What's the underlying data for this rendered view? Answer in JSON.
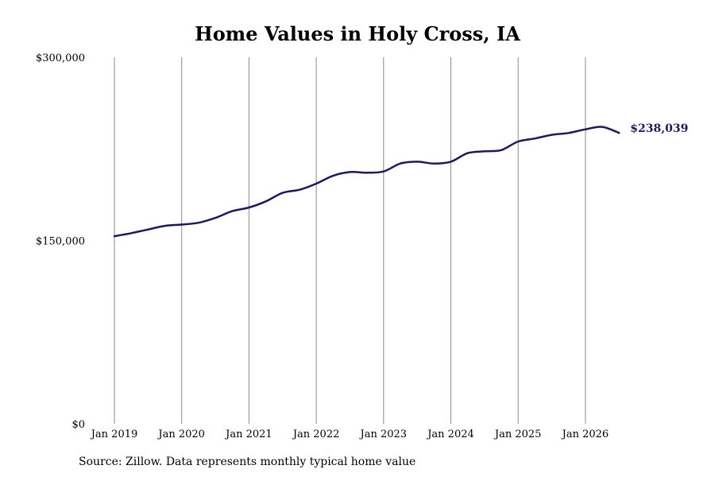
{
  "title": "Home Values in Holy Cross, IA",
  "source": "Source: Zillow. Data represents monthly typical home value",
  "chart_data": {
    "type": "line",
    "title": "Home Values in Holy Cross, IA",
    "xlabel": "",
    "ylabel": "",
    "ylim": [
      0,
      300000
    ],
    "yticks": [
      0,
      150000,
      300000
    ],
    "ytick_labels": [
      "$0",
      "$150,000",
      "$300,000"
    ],
    "xlim": [
      2019.0,
      2026.5
    ],
    "xticks": [
      2019,
      2020,
      2021,
      2022,
      2023,
      2024,
      2025,
      2026
    ],
    "xtick_labels": [
      "Jan 2019",
      "Jan 2020",
      "Jan 2021",
      "Jan 2022",
      "Jan 2023",
      "Jan 2024",
      "Jan 2025",
      "Jan 2026"
    ],
    "grid": "vertical",
    "line_color": "#1a1a5e",
    "end_label": "$238,039",
    "series": [
      {
        "x": [
          2019.0,
          2019.25,
          2019.5,
          2019.75,
          2020.0,
          2020.25,
          2020.5,
          2020.75,
          2021.0,
          2021.25,
          2021.5,
          2021.75,
          2022.0,
          2022.25,
          2022.5,
          2022.75,
          2023.0,
          2023.25,
          2023.5,
          2023.75,
          2024.0,
          2024.25,
          2024.5,
          2024.75,
          2025.0,
          2025.25,
          2025.5,
          2025.75,
          2026.0,
          2026.25,
          2026.5
        ],
        "values": [
          153500,
          156000,
          159000,
          162000,
          163000,
          164500,
          168500,
          174000,
          177000,
          182000,
          189000,
          191500,
          196500,
          203000,
          206000,
          205500,
          206500,
          213000,
          214500,
          213000,
          214500,
          221500,
          223000,
          224000,
          231000,
          233500,
          236500,
          238000,
          241000,
          243000,
          238039
        ]
      }
    ]
  }
}
